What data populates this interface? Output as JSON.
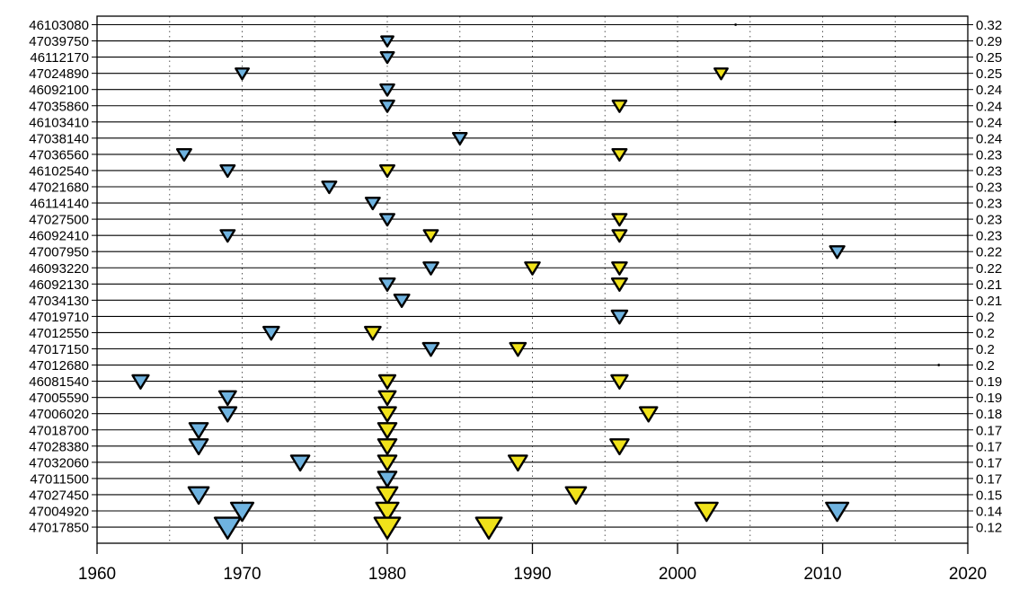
{
  "chart_data": {
    "type": "scatter",
    "title": "",
    "xlabel": "",
    "ylabel": "",
    "xlim": [
      1960,
      2020
    ],
    "x_ticks": [
      "1960",
      "1970",
      "1980",
      "1990",
      "2000",
      "2010",
      "2020"
    ],
    "grid": "vertical dotted lines every 5 years; horizontal line per station",
    "colors": {
      "blue": "#6fb3e0",
      "yellow": "#f0e21a",
      "edge": "#000000"
    },
    "rows": [
      {
        "id": "46103080",
        "value": "0.32",
        "markers": [
          {
            "x": 2004,
            "c": "dot",
            "s": 0
          }
        ]
      },
      {
        "id": "47039750",
        "value": "0.29",
        "markers": [
          {
            "x": 1980,
            "c": "blue",
            "s": 0.22
          }
        ]
      },
      {
        "id": "46112170",
        "value": "0.25",
        "markers": [
          {
            "x": 1980,
            "c": "blue",
            "s": 0.25
          }
        ]
      },
      {
        "id": "47024890",
        "value": "0.25",
        "markers": [
          {
            "x": 1970,
            "c": "blue",
            "s": 0.25
          },
          {
            "x": 2003,
            "c": "yellow",
            "s": 0.25
          }
        ]
      },
      {
        "id": "46092100",
        "value": "0.24",
        "markers": [
          {
            "x": 1980,
            "c": "blue",
            "s": 0.27
          }
        ]
      },
      {
        "id": "47035860",
        "value": "0.24",
        "markers": [
          {
            "x": 1980,
            "c": "blue",
            "s": 0.27
          },
          {
            "x": 1996,
            "c": "yellow",
            "s": 0.27
          }
        ]
      },
      {
        "id": "46103410",
        "value": "0.24",
        "markers": [
          {
            "x": 2015,
            "c": "dot",
            "s": 0
          }
        ]
      },
      {
        "id": "47038140",
        "value": "0.24",
        "markers": [
          {
            "x": 1985,
            "c": "blue",
            "s": 0.27
          }
        ]
      },
      {
        "id": "47036560",
        "value": "0.23",
        "markers": [
          {
            "x": 1966,
            "c": "blue",
            "s": 0.28
          },
          {
            "x": 1996,
            "c": "yellow",
            "s": 0.28
          }
        ]
      },
      {
        "id": "46102540",
        "value": "0.23",
        "markers": [
          {
            "x": 1969,
            "c": "blue",
            "s": 0.28
          },
          {
            "x": 1980,
            "c": "yellow",
            "s": 0.28
          }
        ]
      },
      {
        "id": "47021680",
        "value": "0.23",
        "markers": [
          {
            "x": 1976,
            "c": "blue",
            "s": 0.28
          }
        ]
      },
      {
        "id": "46114140",
        "value": "0.23",
        "markers": [
          {
            "x": 1979,
            "c": "blue",
            "s": 0.28
          }
        ]
      },
      {
        "id": "47027500",
        "value": "0.23",
        "markers": [
          {
            "x": 1980,
            "c": "blue",
            "s": 0.28
          },
          {
            "x": 1996,
            "c": "yellow",
            "s": 0.28
          }
        ]
      },
      {
        "id": "46092410",
        "value": "0.23",
        "markers": [
          {
            "x": 1969,
            "c": "blue",
            "s": 0.28
          },
          {
            "x": 1983,
            "c": "yellow",
            "s": 0.28
          },
          {
            "x": 1996,
            "c": "yellow",
            "s": 0.28
          }
        ]
      },
      {
        "id": "47007950",
        "value": "0.22",
        "markers": [
          {
            "x": 2011,
            "c": "blue",
            "s": 0.29
          }
        ]
      },
      {
        "id": "46093220",
        "value": "0.22",
        "markers": [
          {
            "x": 1983,
            "c": "blue",
            "s": 0.3
          },
          {
            "x": 1990,
            "c": "yellow",
            "s": 0.3
          },
          {
            "x": 1996,
            "c": "yellow",
            "s": 0.3
          }
        ]
      },
      {
        "id": "46092130",
        "value": "0.21",
        "markers": [
          {
            "x": 1980,
            "c": "blue",
            "s": 0.31
          },
          {
            "x": 1996,
            "c": "yellow",
            "s": 0.31
          }
        ]
      },
      {
        "id": "47034130",
        "value": "0.21",
        "markers": [
          {
            "x": 1981,
            "c": "blue",
            "s": 0.31
          }
        ]
      },
      {
        "id": "47019710",
        "value": "0.2",
        "markers": [
          {
            "x": 1996,
            "c": "blue",
            "s": 0.33
          }
        ]
      },
      {
        "id": "47012550",
        "value": "0.2",
        "markers": [
          {
            "x": 1972,
            "c": "blue",
            "s": 0.33
          },
          {
            "x": 1979,
            "c": "yellow",
            "s": 0.33
          }
        ]
      },
      {
        "id": "47017150",
        "value": "0.2",
        "markers": [
          {
            "x": 1983,
            "c": "blue",
            "s": 0.33
          },
          {
            "x": 1989,
            "c": "yellow",
            "s": 0.33
          }
        ]
      },
      {
        "id": "47012680",
        "value": "0.2",
        "markers": [
          {
            "x": 2018,
            "c": "dot",
            "s": 0
          }
        ]
      },
      {
        "id": "46081540",
        "value": "0.19",
        "markers": [
          {
            "x": 1963,
            "c": "blue",
            "s": 0.35
          },
          {
            "x": 1980,
            "c": "yellow",
            "s": 0.35
          },
          {
            "x": 1996,
            "c": "yellow",
            "s": 0.35
          }
        ]
      },
      {
        "id": "47005590",
        "value": "0.19",
        "markers": [
          {
            "x": 1969,
            "c": "blue",
            "s": 0.37
          },
          {
            "x": 1980,
            "c": "yellow",
            "s": 0.37
          }
        ]
      },
      {
        "id": "47006020",
        "value": "0.18",
        "markers": [
          {
            "x": 1969,
            "c": "blue",
            "s": 0.39
          },
          {
            "x": 1980,
            "c": "yellow",
            "s": 0.39
          },
          {
            "x": 1998,
            "c": "yellow",
            "s": 0.39
          }
        ]
      },
      {
        "id": "47018700",
        "value": "0.17",
        "markers": [
          {
            "x": 1967,
            "c": "blue",
            "s": 0.42
          },
          {
            "x": 1980,
            "c": "yellow",
            "s": 0.42
          }
        ]
      },
      {
        "id": "47028380",
        "value": "0.17",
        "markers": [
          {
            "x": 1967,
            "c": "blue",
            "s": 0.42
          },
          {
            "x": 1980,
            "c": "yellow",
            "s": 0.42
          },
          {
            "x": 1996,
            "c": "yellow",
            "s": 0.42
          }
        ]
      },
      {
        "id": "47032060",
        "value": "0.17",
        "markers": [
          {
            "x": 1974,
            "c": "blue",
            "s": 0.42
          },
          {
            "x": 1980,
            "c": "yellow",
            "s": 0.42
          },
          {
            "x": 1989,
            "c": "yellow",
            "s": 0.42
          }
        ]
      },
      {
        "id": "47011500",
        "value": "0.17",
        "markers": [
          {
            "x": 1980,
            "c": "blue",
            "s": 0.42
          }
        ]
      },
      {
        "id": "47027450",
        "value": "0.15",
        "markers": [
          {
            "x": 1967,
            "c": "blue",
            "s": 0.48
          },
          {
            "x": 1980,
            "c": "yellow",
            "s": 0.48
          },
          {
            "x": 1993,
            "c": "yellow",
            "s": 0.48
          }
        ]
      },
      {
        "id": "47004920",
        "value": "0.14",
        "markers": [
          {
            "x": 1970,
            "c": "blue",
            "s": 0.55
          },
          {
            "x": 1980,
            "c": "yellow",
            "s": 0.55
          },
          {
            "x": 2002,
            "c": "yellow",
            "s": 0.55
          },
          {
            "x": 2011,
            "c": "blue",
            "s": 0.55
          }
        ]
      },
      {
        "id": "47017850",
        "value": "0.12",
        "markers": [
          {
            "x": 1969,
            "c": "blue",
            "s": 0.66
          },
          {
            "x": 1980,
            "c": "yellow",
            "s": 0.66
          },
          {
            "x": 1987,
            "c": "yellow",
            "s": 0.66
          }
        ]
      }
    ]
  }
}
